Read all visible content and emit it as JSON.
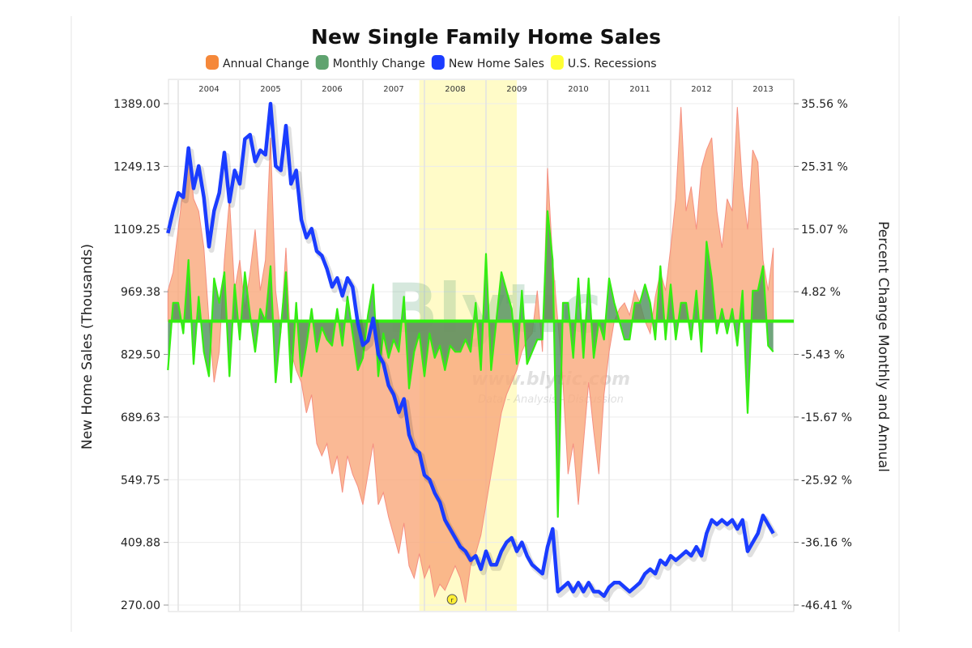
{
  "chart_data": {
    "type": "line",
    "title": "New Single Family Home Sales",
    "legend": {
      "placement": "top",
      "entries": [
        {
          "label": "Annual Change",
          "color": "#f5883a"
        },
        {
          "label": "Monthly Change",
          "color": "#5fa36f"
        },
        {
          "label": "New Home Sales",
          "color": "#1a3cff"
        },
        {
          "label": "U.S. Recessions",
          "color": "#ffff33"
        }
      ]
    },
    "ylabel_left": "New Home Sales (Thousands)",
    "ylabel_right": "Percent Change Monthly and Annual",
    "y_left_ticks": [
      "1389.00",
      "1249.13",
      "1109.25",
      "969.38",
      "829.50",
      "689.63",
      "549.75",
      "409.88",
      "270.00"
    ],
    "y_right_ticks": [
      "35.56 %",
      "25.31 %",
      "15.07 %",
      "4.82 %",
      "-5.43 %",
      "-15.67 %",
      "-25.92 %",
      "-36.16 %",
      "-46.41 %"
    ],
    "y_left_range": [
      270.0,
      1389.0
    ],
    "y_right_range": [
      -46.41,
      35.56
    ],
    "x_ticks": [
      "2004",
      "2005",
      "2006",
      "2007",
      "2008",
      "2009",
      "2010",
      "2011",
      "2012",
      "2013"
    ],
    "x_range": [
      "2003-11",
      "2014-01"
    ],
    "grid": true,
    "recession": {
      "start": "2007-12",
      "end": "2009-06"
    },
    "series_start": "2003-11",
    "frequency": "monthly",
    "series": [
      {
        "name": "New Home Sales",
        "axis": "left",
        "color": "#1a3cff",
        "values": [
          1100,
          1150,
          1190,
          1180,
          1290,
          1200,
          1250,
          1180,
          1070,
          1150,
          1190,
          1280,
          1170,
          1240,
          1210,
          1310,
          1320,
          1260,
          1285,
          1275,
          1389,
          1250,
          1240,
          1340,
          1210,
          1240,
          1130,
          1090,
          1110,
          1060,
          1050,
          1020,
          980,
          1000,
          960,
          1000,
          980,
          900,
          850,
          860,
          910,
          830,
          810,
          760,
          740,
          700,
          730,
          650,
          620,
          610,
          560,
          550,
          520,
          500,
          460,
          440,
          420,
          400,
          390,
          370,
          380,
          350,
          390,
          360,
          360,
          390,
          410,
          420,
          390,
          410,
          380,
          360,
          350,
          340,
          400,
          440,
          300,
          310,
          320,
          300,
          320,
          300,
          320,
          300,
          300,
          290,
          310,
          320,
          320,
          310,
          300,
          310,
          320,
          340,
          350,
          340,
          370,
          360,
          380,
          370,
          380,
          390,
          380,
          400,
          380,
          430,
          460,
          450,
          460,
          450,
          460,
          440,
          460,
          390,
          410,
          430,
          470,
          450,
          430
        ]
      },
      {
        "name": "Annual Change",
        "axis": "right",
        "color": "#f5883a",
        "values": [
          5,
          8,
          15,
          22,
          28,
          20,
          18,
          12,
          0,
          -10,
          -5,
          10,
          20,
          5,
          10,
          2,
          8,
          15,
          5,
          10,
          30,
          5,
          -2,
          12,
          -5,
          -8,
          -10,
          -15,
          -12,
          -20,
          -22,
          -20,
          -25,
          -22,
          -28,
          -22,
          -25,
          -27,
          -30,
          -25,
          -20,
          -30,
          -28,
          -32,
          -35,
          -38,
          -33,
          -40,
          -42,
          -38,
          -42,
          -40,
          -45,
          -43,
          -44,
          -42,
          -40,
          -42,
          -46,
          -40,
          -38,
          -35,
          -30,
          -25,
          -20,
          -15,
          -12,
          -10,
          -8,
          -5,
          -3,
          -2,
          5,
          -5,
          25,
          10,
          0,
          -10,
          -25,
          -20,
          -30,
          -20,
          -10,
          -18,
          -25,
          -12,
          -5,
          0,
          2,
          3,
          1,
          5,
          3,
          0,
          -2,
          4,
          8,
          5,
          12,
          20,
          35,
          18,
          22,
          15,
          25,
          28,
          30,
          18,
          12,
          20,
          18,
          35,
          22,
          15,
          28,
          26,
          10,
          5,
          12
        ]
      },
      {
        "name": "Monthly Change",
        "axis": "right",
        "color": "#5fa36f",
        "values": [
          -8,
          3,
          3,
          -2,
          10,
          -7,
          4,
          -5,
          -9,
          7,
          3,
          8,
          -9,
          6,
          -3,
          8,
          1,
          -5,
          2,
          0,
          9,
          -10,
          -1,
          8,
          -10,
          3,
          -9,
          -4,
          2,
          -5,
          -1,
          -3,
          -4,
          2,
          -4,
          4,
          -2,
          -8,
          -6,
          1,
          6,
          -9,
          -2,
          -6,
          -3,
          -5,
          4,
          -11,
          -5,
          -2,
          -9,
          -2,
          -6,
          -4,
          -8,
          -4,
          -5,
          -5,
          -3,
          -5,
          3,
          -8,
          11,
          -8,
          0,
          8,
          5,
          2,
          -7,
          5,
          -7,
          -5,
          -3,
          -3,
          18,
          10,
          -32,
          3,
          3,
          -6,
          7,
          -6,
          7,
          -6,
          0,
          -3,
          7,
          3,
          0,
          -3,
          -3,
          3,
          3,
          6,
          3,
          -3,
          9,
          -3,
          6,
          -3,
          3,
          3,
          -3,
          5,
          -5,
          13,
          7,
          -2,
          2,
          -2,
          2,
          -4,
          5,
          -15,
          5,
          5,
          9,
          -4,
          -5
        ]
      }
    ],
    "annotation_marker": "r"
  },
  "watermark": {
    "logo": "Blytic",
    "url": "www.blytic.com",
    "tagline": "Data - Analysis - Discussion"
  }
}
